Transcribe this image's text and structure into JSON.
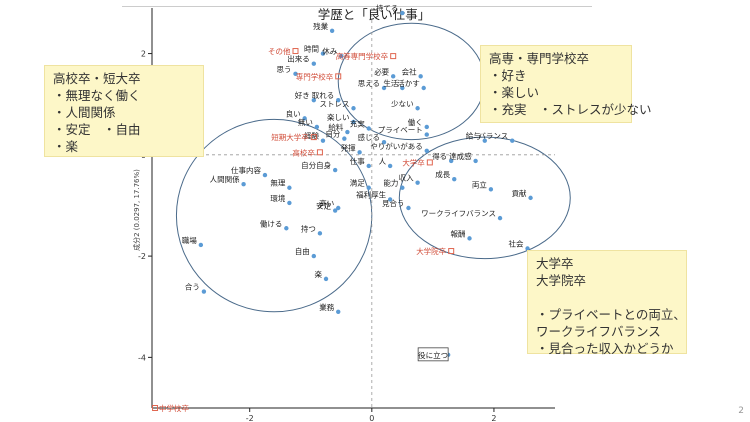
{
  "page_number": "2",
  "chart_data": {
    "type": "scatter",
    "title": "学歴と「良い仕事」",
    "xlabel": "",
    "ylabel": "成分2 (0.0297, 17.76%)",
    "xlim": [
      -3.6,
      3.0
    ],
    "ylim": [
      -5.0,
      2.9
    ],
    "xticks": [
      "-2",
      "0",
      "2"
    ],
    "yticks": [
      "2",
      "0",
      "-2",
      "-4"
    ],
    "word_points": [
      {
        "label": "持てる",
        "x": 0.5,
        "y": 2.8
      },
      {
        "label": "残業",
        "x": -0.65,
        "y": 2.45
      },
      {
        "label": "時間",
        "x": -0.8,
        "y": 2.0
      },
      {
        "label": "休み",
        "x": -0.5,
        "y": 1.95
      },
      {
        "label": "出来る",
        "x": -0.95,
        "y": 1.8
      },
      {
        "label": "思う",
        "x": -1.25,
        "y": 1.6
      },
      {
        "label": "必要",
        "x": 0.35,
        "y": 1.55
      },
      {
        "label": "会社",
        "x": 0.8,
        "y": 1.55
      },
      {
        "label": "思える",
        "x": 0.2,
        "y": 1.32
      },
      {
        "label": "生活",
        "x": 0.5,
        "y": 1.32
      },
      {
        "label": "活かす",
        "x": 0.85,
        "y": 1.32
      },
      {
        "label": "好き",
        "x": -0.95,
        "y": 1.08
      },
      {
        "label": "取れる",
        "x": -0.55,
        "y": 1.08
      },
      {
        "label": "ストレス",
        "x": -0.3,
        "y": 0.92
      },
      {
        "label": "少ない",
        "x": 0.75,
        "y": 0.92
      },
      {
        "label": "良い",
        "x": -1.1,
        "y": 0.72
      },
      {
        "label": "楽しい",
        "x": -0.3,
        "y": 0.65
      },
      {
        "label": "無い",
        "x": -0.9,
        "y": 0.55
      },
      {
        "label": "給料",
        "x": -0.4,
        "y": 0.45
      },
      {
        "label": "充実",
        "x": -0.05,
        "y": 0.52
      },
      {
        "label": "自分",
        "x": -0.45,
        "y": 0.32
      },
      {
        "label": "働く",
        "x": 0.9,
        "y": 0.55
      },
      {
        "label": "感じる",
        "x": 0.2,
        "y": 0.25
      },
      {
        "label": "プライベート",
        "x": 0.9,
        "y": 0.4
      },
      {
        "label": "経験",
        "x": -0.8,
        "y": 0.28
      },
      {
        "label": "給与",
        "x": 1.85,
        "y": 0.28
      },
      {
        "label": "バランス",
        "x": 2.3,
        "y": 0.28
      },
      {
        "label": "発揮",
        "x": -0.2,
        "y": 0.05
      },
      {
        "label": "やりがいがある",
        "x": 0.9,
        "y": 0.08
      },
      {
        "label": "得る",
        "x": 1.3,
        "y": -0.12
      },
      {
        "label": "達成感",
        "x": 1.7,
        "y": -0.12
      },
      {
        "label": "仕事",
        "x": -0.05,
        "y": -0.22
      },
      {
        "label": "人",
        "x": 0.3,
        "y": -0.22
      },
      {
        "label": "自分自身",
        "x": -0.6,
        "y": -0.3
      },
      {
        "label": "仕事内容",
        "x": -1.75,
        "y": -0.4
      },
      {
        "label": "人間関係",
        "x": -2.1,
        "y": -0.58
      },
      {
        "label": "成長",
        "x": 1.35,
        "y": -0.48
      },
      {
        "label": "無理",
        "x": -1.35,
        "y": -0.65
      },
      {
        "label": "満足",
        "x": -0.05,
        "y": -0.65
      },
      {
        "label": "能力",
        "x": 0.5,
        "y": -0.65
      },
      {
        "label": "収入",
        "x": 0.75,
        "y": -0.55
      },
      {
        "label": "両立",
        "x": 1.95,
        "y": -0.68
      },
      {
        "label": "福利厚生",
        "x": 0.3,
        "y": -0.88
      },
      {
        "label": "環境",
        "x": -1.35,
        "y": -0.95
      },
      {
        "label": "高い",
        "x": -0.55,
        "y": -1.05
      },
      {
        "label": "見合う",
        "x": 0.6,
        "y": -1.05
      },
      {
        "label": "貢献",
        "x": 2.6,
        "y": -0.85
      },
      {
        "label": "安定",
        "x": -0.6,
        "y": -1.1
      },
      {
        "label": "ワークライフバランス",
        "x": 2.1,
        "y": -1.25
      },
      {
        "label": "働ける",
        "x": -1.4,
        "y": -1.45
      },
      {
        "label": "持つ",
        "x": -0.85,
        "y": -1.55
      },
      {
        "label": "報酬",
        "x": 1.6,
        "y": -1.65
      },
      {
        "label": "社会",
        "x": 2.55,
        "y": -1.85
      },
      {
        "label": "職場",
        "x": -2.8,
        "y": -1.78
      },
      {
        "label": "自由",
        "x": -0.95,
        "y": -2.0
      },
      {
        "label": "楽",
        "x": -0.75,
        "y": -2.45
      },
      {
        "label": "合う",
        "x": -2.75,
        "y": -2.7
      },
      {
        "label": "業務",
        "x": -0.55,
        "y": -3.1
      },
      {
        "label": "役に立つ",
        "x": 1.25,
        "y": -3.95
      }
    ],
    "category_points": [
      {
        "label": "その他",
        "x": -1.25,
        "y": 2.05
      },
      {
        "label": "高等専門学校卒",
        "x": 0.35,
        "y": 1.95
      },
      {
        "label": "専門学校卒",
        "x": -0.55,
        "y": 1.55
      },
      {
        "label": "短期大学卒",
        "x": -0.95,
        "y": 0.35
      },
      {
        "label": "高校卒",
        "x": -0.85,
        "y": 0.05
      },
      {
        "label": "大学卒",
        "x": 0.95,
        "y": -0.15
      },
      {
        "label": "大学院卒",
        "x": 1.3,
        "y": -1.9
      },
      {
        "label": "中学校卒",
        "x": -3.55,
        "y": -5.0
      }
    ],
    "ellipses": [
      {
        "cx": -1.6,
        "cy": -1.2,
        "rx": 1.6,
        "ry": 1.9
      },
      {
        "cx": 0.65,
        "cy": 1.45,
        "rx": 1.2,
        "ry": 1.15
      },
      {
        "cx": 1.85,
        "cy": -0.85,
        "rx": 1.4,
        "ry": 1.2
      }
    ],
    "reference_lines": {
      "x": 0,
      "y": 0
    }
  },
  "annotations": {
    "left": "高校卒・短大卒\n・無理なく働く\n・人間関係\n・安定　・自由\n・楽",
    "right": "高専・専門学校卒\n・好き\n・楽しい\n・充実　・ストレスが少ない",
    "bottom": "大学卒\n大学院卒\n\n・プライベートとの両立、\nワークライフバランス\n・見合った収入かどうか"
  }
}
